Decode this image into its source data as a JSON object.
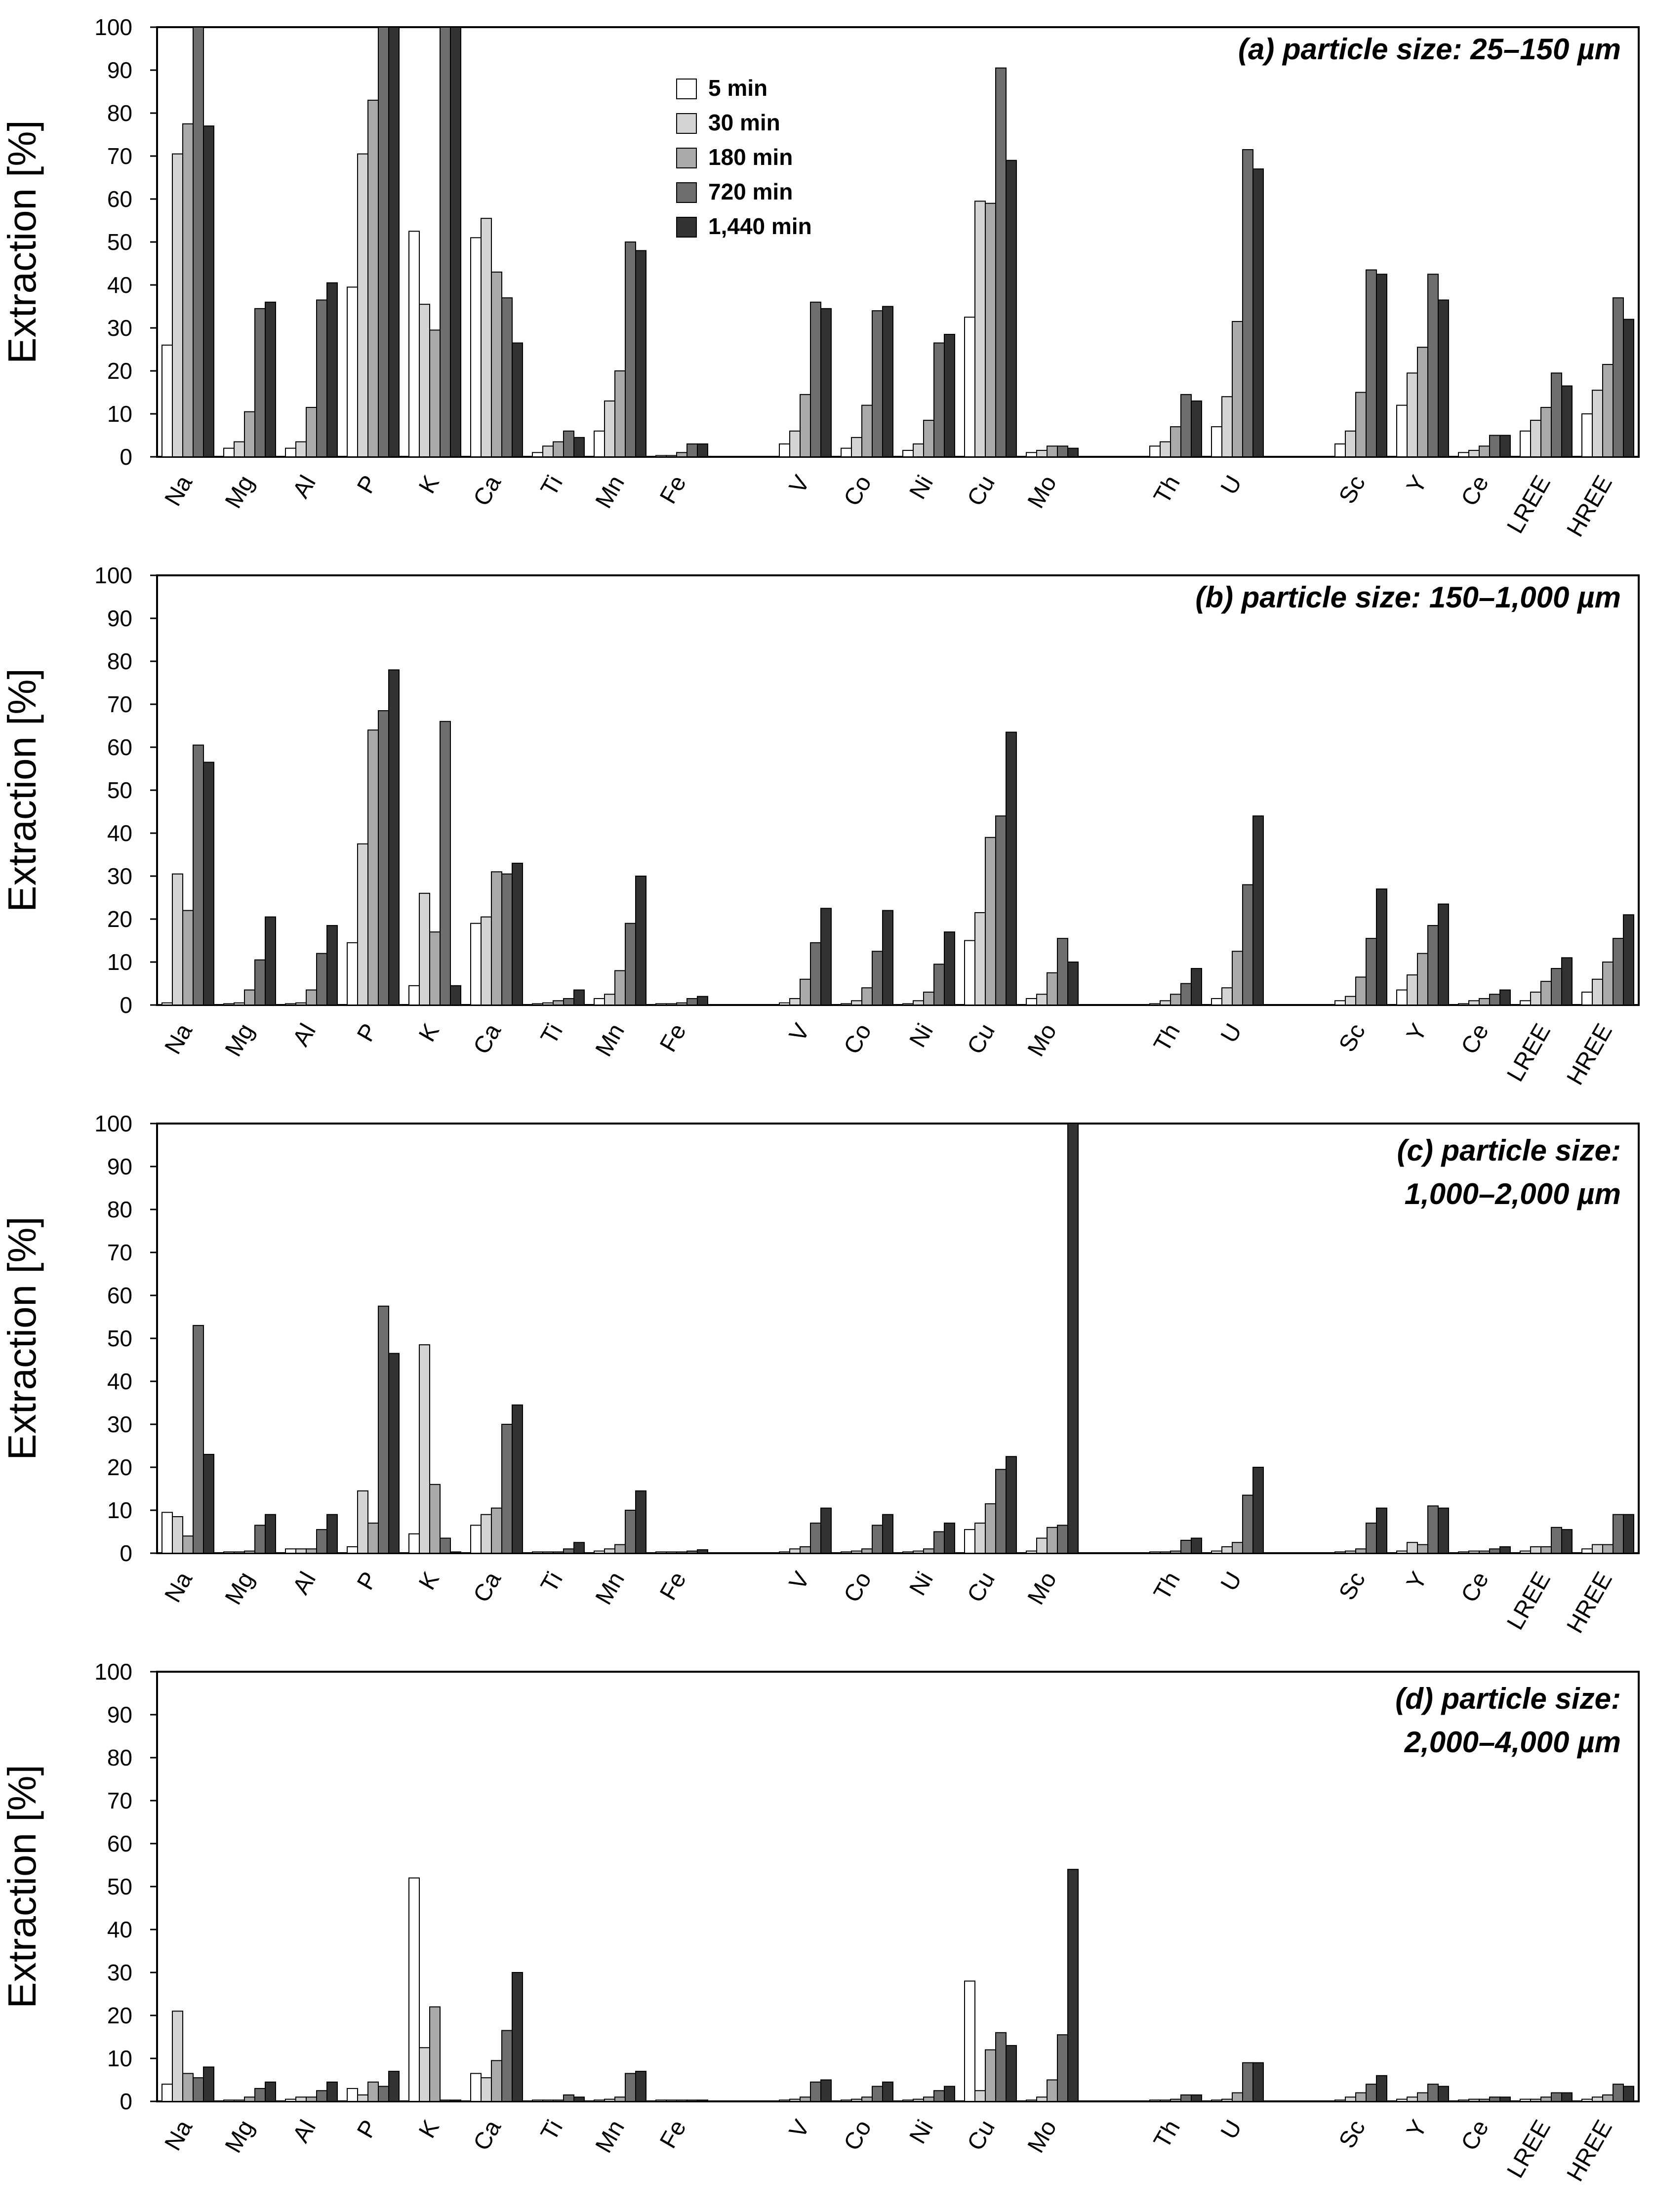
{
  "figure": {
    "ylabel": "Extraction [%]"
  },
  "colors": {
    "series": [
      "#ffffff",
      "#d4d4d4",
      "#a9a9a9",
      "#6e6e6e",
      "#323232"
    ],
    "stroke": "#000000",
    "frame": "#000000"
  },
  "legend": {
    "items": [
      "5 min",
      "30 min",
      "180 min",
      "720 min",
      "1,440 min"
    ],
    "placement": "top-center"
  },
  "chart_data": [
    {
      "type": "bar",
      "title": "(a) particle size: 25–150 µm",
      "xlabel": "",
      "ylabel": "Extraction [%]",
      "ylim": [
        0,
        100
      ],
      "yticks": [
        "0",
        "10",
        "20",
        "30",
        "40",
        "50",
        "60",
        "70",
        "80",
        "90",
        "100"
      ],
      "categories": [
        "Na",
        "Mg",
        "Al",
        "P",
        "K",
        "Ca",
        "Ti",
        "Mn",
        "Fe",
        "",
        "V",
        "Co",
        "Ni",
        "Cu",
        "Mo",
        "",
        "Th",
        "U",
        "",
        "Sc",
        "Y",
        "Ce",
        "LREE",
        "HREE"
      ],
      "series": [
        {
          "name": "5 min",
          "values": [
            26,
            2,
            2,
            39.5,
            52.5,
            51,
            1,
            6,
            0.3,
            null,
            3,
            2,
            1.5,
            32.5,
            1,
            null,
            2.5,
            7,
            null,
            3,
            12,
            1,
            6,
            10
          ]
        },
        {
          "name": "30 min",
          "values": [
            70.5,
            3.5,
            3.5,
            70.5,
            35.5,
            55.5,
            2.5,
            13,
            0.3,
            null,
            6,
            4.5,
            3,
            59.5,
            1.5,
            null,
            3.5,
            14,
            null,
            6,
            19.5,
            1.5,
            8.5,
            15.5
          ]
        },
        {
          "name": "180 min",
          "values": [
            77.5,
            10.5,
            11.5,
            83,
            29.5,
            43,
            3.5,
            20,
            1,
            null,
            14.5,
            12,
            8.5,
            59,
            2.5,
            null,
            7,
            31.5,
            null,
            15,
            25.5,
            2.5,
            11.5,
            21.5
          ]
        },
        {
          "name": "720 min",
          "values": [
            100,
            34.5,
            36.5,
            100,
            100,
            37,
            6,
            50,
            3,
            null,
            36,
            34,
            26.5,
            90.5,
            2.5,
            null,
            14.5,
            71.5,
            null,
            43.5,
            42.5,
            5,
            19.5,
            37
          ]
        },
        {
          "name": "1,440 min",
          "values": [
            77,
            36,
            40.5,
            100,
            100,
            26.5,
            4.5,
            48,
            3,
            null,
            34.5,
            35,
            28.5,
            69,
            2,
            null,
            13,
            67,
            null,
            42.5,
            36.5,
            5,
            16.5,
            32
          ]
        }
      ]
    },
    {
      "type": "bar",
      "title": "(b) particle size: 150–1,000 µm",
      "xlabel": "",
      "ylabel": "Extraction [%]",
      "ylim": [
        0,
        100
      ],
      "yticks": [
        "0",
        "10",
        "20",
        "30",
        "40",
        "50",
        "60",
        "70",
        "80",
        "90",
        "100"
      ],
      "categories": [
        "Na",
        "Mg",
        "Al",
        "P",
        "K",
        "Ca",
        "Ti",
        "Mn",
        "Fe",
        "",
        "V",
        "Co",
        "Ni",
        "Cu",
        "Mo",
        "",
        "Th",
        "U",
        "",
        "Sc",
        "Y",
        "Ce",
        "LREE",
        "HREE"
      ],
      "series": [
        {
          "name": "5 min",
          "values": [
            0.5,
            0.3,
            0.3,
            14.5,
            4.5,
            19,
            0.3,
            1.5,
            0.3,
            null,
            0.5,
            0.3,
            0.3,
            15,
            1.5,
            null,
            0.3,
            1.5,
            null,
            1,
            3.5,
            0.3,
            1,
            3
          ]
        },
        {
          "name": "30 min",
          "values": [
            30.5,
            0.5,
            0.5,
            37.5,
            26,
            20.5,
            0.5,
            2.5,
            0.3,
            null,
            1.5,
            1,
            1,
            21.5,
            2.5,
            null,
            1,
            4,
            null,
            2,
            7,
            1,
            3,
            6
          ]
        },
        {
          "name": "180 min",
          "values": [
            22,
            3.5,
            3.5,
            64,
            17,
            31,
            1,
            8,
            0.5,
            null,
            6,
            4,
            3,
            39,
            7.5,
            null,
            2.5,
            12.5,
            null,
            6.5,
            12,
            1.5,
            5.5,
            10
          ]
        },
        {
          "name": "720 min",
          "values": [
            60.5,
            10.5,
            12,
            68.5,
            66,
            30.5,
            1.5,
            19,
            1.5,
            null,
            14.5,
            12.5,
            9.5,
            44,
            15.5,
            null,
            5,
            28,
            null,
            15.5,
            18.5,
            2.5,
            8.5,
            15.5
          ]
        },
        {
          "name": "1,440 min",
          "values": [
            56.5,
            20.5,
            18.5,
            78,
            4.5,
            33,
            3.5,
            30,
            2,
            null,
            22.5,
            22,
            17,
            63.5,
            10,
            null,
            8.5,
            44,
            null,
            27,
            23.5,
            3.5,
            11,
            21
          ]
        }
      ]
    },
    {
      "type": "bar",
      "title": "(c) particle size: 1,000–2,000 µm",
      "xlabel": "",
      "ylabel": "Extraction [%]",
      "ylim": [
        0,
        100
      ],
      "yticks": [
        "0",
        "10",
        "20",
        "30",
        "40",
        "50",
        "60",
        "70",
        "80",
        "90",
        "100"
      ],
      "categories": [
        "Na",
        "Mg",
        "Al",
        "P",
        "K",
        "Ca",
        "Ti",
        "Mn",
        "Fe",
        "",
        "V",
        "Co",
        "Ni",
        "Cu",
        "Mo",
        "",
        "Th",
        "U",
        "",
        "Sc",
        "Y",
        "Ce",
        "LREE",
        "HREE"
      ],
      "series": [
        {
          "name": "5 min",
          "values": [
            9.5,
            0.3,
            1,
            1.5,
            4.5,
            6.5,
            0.3,
            0.5,
            0.3,
            null,
            0.3,
            0.3,
            0.3,
            5.5,
            0.5,
            null,
            0.3,
            0.5,
            null,
            0.3,
            0.5,
            0.3,
            0.5,
            1
          ]
        },
        {
          "name": "30 min",
          "values": [
            8.5,
            0.3,
            1,
            14.5,
            48.5,
            9,
            0.3,
            1,
            0.3,
            null,
            1,
            0.5,
            0.5,
            7,
            3.5,
            null,
            0.3,
            1.5,
            null,
            0.5,
            2.5,
            0.5,
            1.5,
            2
          ]
        },
        {
          "name": "180 min",
          "values": [
            4,
            0.5,
            1,
            7,
            16,
            10.5,
            0.3,
            2,
            0.3,
            null,
            1.5,
            1,
            1,
            11.5,
            6,
            null,
            0.5,
            2.5,
            null,
            1,
            2,
            0.5,
            1.5,
            2
          ]
        },
        {
          "name": "720 min",
          "values": [
            53,
            6.5,
            5.5,
            57.5,
            3.5,
            30,
            1,
            10,
            0.5,
            null,
            7,
            6.5,
            5,
            19.5,
            6.5,
            null,
            3,
            13.5,
            null,
            7,
            11,
            1,
            6,
            9
          ]
        },
        {
          "name": "1,440 min",
          "values": [
            23,
            9,
            9,
            46.5,
            0.3,
            34.5,
            2.5,
            14.5,
            0.8,
            null,
            10.5,
            9,
            7,
            22.5,
            100,
            null,
            3.5,
            20,
            null,
            10.5,
            10.5,
            1.5,
            5.5,
            9
          ]
        }
      ]
    },
    {
      "type": "bar",
      "title": "(d) particle size: 2,000–4,000 µm",
      "xlabel": "",
      "ylabel": "Extraction [%]",
      "ylim": [
        0,
        100
      ],
      "yticks": [
        "0",
        "10",
        "20",
        "30",
        "40",
        "50",
        "60",
        "70",
        "80",
        "90",
        "100"
      ],
      "categories": [
        "Na",
        "Mg",
        "Al",
        "P",
        "K",
        "Ca",
        "Ti",
        "Mn",
        "Fe",
        "",
        "V",
        "Co",
        "Ni",
        "Cu",
        "Mo",
        "",
        "Th",
        "U",
        "",
        "Sc",
        "Y",
        "Ce",
        "LREE",
        "HREE"
      ],
      "series": [
        {
          "name": "5 min",
          "values": [
            4,
            0.3,
            0.5,
            3,
            52,
            6.5,
            0.3,
            0.3,
            0.3,
            null,
            0.3,
            0.3,
            0.3,
            28,
            0.3,
            null,
            0.3,
            0.3,
            null,
            0.3,
            0.5,
            0.3,
            0.5,
            0.5
          ]
        },
        {
          "name": "30 min",
          "values": [
            21,
            0.3,
            1,
            1.5,
            12.5,
            5.5,
            0.3,
            0.5,
            0.3,
            null,
            0.5,
            0.5,
            0.5,
            2.5,
            1,
            null,
            0.3,
            0.5,
            null,
            1,
            1,
            0.5,
            0.5,
            1
          ]
        },
        {
          "name": "180 min",
          "values": [
            6.5,
            1,
            1,
            4.5,
            22,
            9.5,
            0.3,
            1,
            0.3,
            null,
            1,
            1,
            1,
            12,
            5,
            null,
            0.5,
            2,
            null,
            2,
            2,
            0.5,
            1,
            1.5
          ]
        },
        {
          "name": "720 min",
          "values": [
            5.5,
            3,
            2.5,
            3.5,
            0.3,
            16.5,
            1.5,
            6.5,
            0.3,
            null,
            4.5,
            3.5,
            2.5,
            16,
            15.5,
            null,
            1.5,
            9,
            null,
            4,
            4,
            1,
            2,
            4
          ]
        },
        {
          "name": "1,440 min",
          "values": [
            8,
            4.5,
            4.5,
            7,
            0.3,
            30,
            1,
            7,
            0.3,
            null,
            5,
            4.5,
            3.5,
            13,
            54,
            null,
            1.5,
            9,
            null,
            6,
            3.5,
            1,
            2,
            3.5
          ]
        }
      ]
    }
  ]
}
